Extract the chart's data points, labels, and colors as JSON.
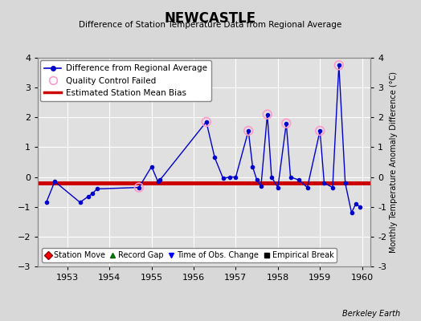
{
  "title": "NEWCASTLE",
  "subtitle": "Difference of Station Temperature Data from Regional Average",
  "ylabel_right": "Monthly Temperature Anomaly Difference (°C)",
  "credit": "Berkeley Earth",
  "ylim": [
    -3,
    4
  ],
  "xlim": [
    1952.3,
    1960.2
  ],
  "bias_line": -0.2,
  "background_color": "#d8d8d8",
  "plot_bg_color": "#e0e0e0",
  "grid_color": "#ffffff",
  "main_line_color": "#0000cc",
  "bias_line_color": "#cc0000",
  "qc_marker_color": "#ff99cc",
  "data_points": [
    [
      1952.5,
      -0.85
    ],
    [
      1952.7,
      -0.15
    ],
    [
      1953.3,
      -0.85
    ],
    [
      1953.5,
      -0.65
    ],
    [
      1953.6,
      -0.55
    ],
    [
      1953.7,
      -0.4
    ],
    [
      1954.7,
      -0.35
    ],
    [
      1955.0,
      0.35
    ],
    [
      1955.15,
      -0.15
    ],
    [
      1955.2,
      -0.1
    ],
    [
      1956.3,
      1.85
    ],
    [
      1956.5,
      0.65
    ],
    [
      1956.7,
      -0.05
    ],
    [
      1956.85,
      0.0
    ],
    [
      1957.0,
      0.0
    ],
    [
      1957.3,
      1.55
    ],
    [
      1957.4,
      0.35
    ],
    [
      1957.5,
      -0.1
    ],
    [
      1957.6,
      -0.3
    ],
    [
      1957.75,
      2.1
    ],
    [
      1957.85,
      0.0
    ],
    [
      1958.0,
      -0.35
    ],
    [
      1958.2,
      1.8
    ],
    [
      1958.3,
      0.0
    ],
    [
      1958.5,
      -0.1
    ],
    [
      1958.7,
      -0.35
    ],
    [
      1959.0,
      1.55
    ],
    [
      1959.1,
      -0.2
    ],
    [
      1959.3,
      -0.35
    ],
    [
      1959.45,
      3.75
    ],
    [
      1959.6,
      -0.2
    ],
    [
      1959.75,
      -1.2
    ],
    [
      1959.85,
      -0.9
    ],
    [
      1959.95,
      -1.0
    ]
  ],
  "qc_failed_points": [
    [
      1954.7,
      -0.35
    ],
    [
      1956.3,
      1.85
    ],
    [
      1957.3,
      1.55
    ],
    [
      1957.75,
      2.1
    ],
    [
      1958.2,
      1.8
    ],
    [
      1959.0,
      1.55
    ],
    [
      1959.45,
      3.75
    ]
  ],
  "xticks": [
    1953,
    1954,
    1955,
    1956,
    1957,
    1958,
    1959,
    1960
  ],
  "yticks": [
    -3,
    -2,
    -1,
    0,
    1,
    2,
    3,
    4
  ]
}
